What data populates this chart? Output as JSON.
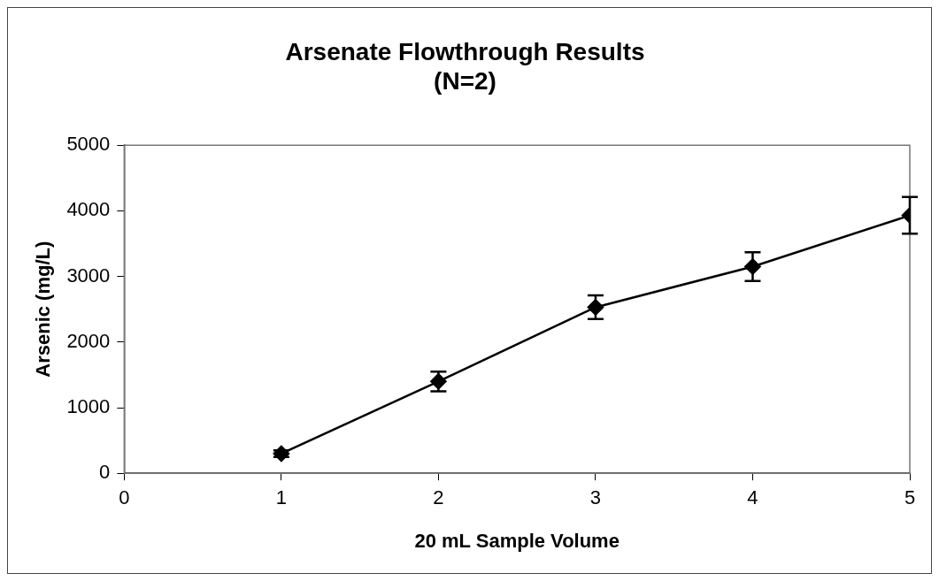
{
  "chart_data": {
    "type": "line",
    "title": [
      "Arsenate Flowthrough Results",
      "(N=2)"
    ],
    "xlabel": "20 mL Sample Volume",
    "ylabel": "Arsenic (mg/L)",
    "x": [
      1,
      2,
      3,
      4,
      5
    ],
    "series": [
      {
        "color": "#000000",
        "values": [
          300,
          1400,
          2530,
          3150,
          3930
        ],
        "errors": [
          50,
          150,
          180,
          220,
          280
        ]
      }
    ],
    "xlim": [
      0,
      5
    ],
    "xticks": [
      0,
      1,
      2,
      3,
      4,
      5
    ],
    "ylim": [
      0,
      5000
    ],
    "yticks": [
      0,
      1000,
      2000,
      3000,
      4000,
      5000
    ],
    "grid": false,
    "legend": false,
    "marker": "diamond",
    "line_style": "solid"
  }
}
